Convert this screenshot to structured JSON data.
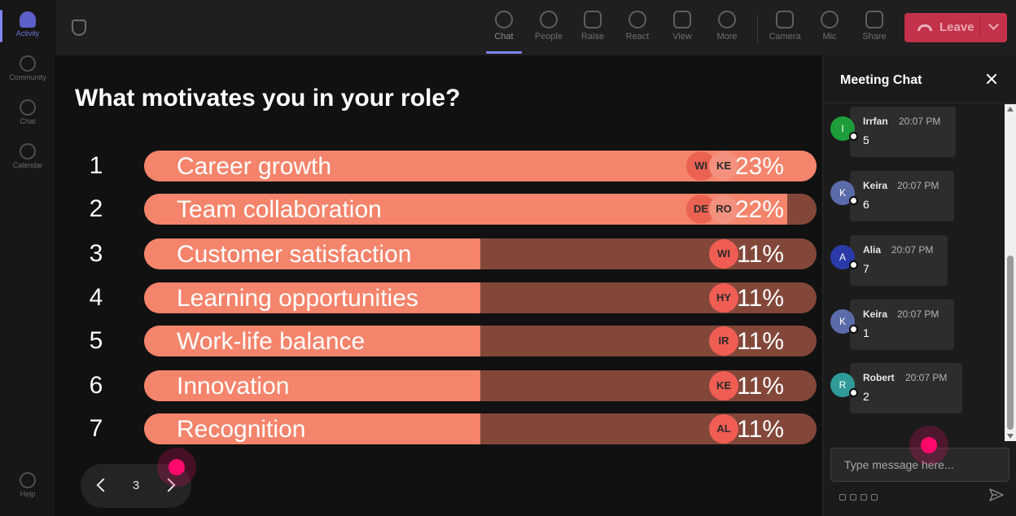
{
  "rail": {
    "items": [
      {
        "label": "Activity",
        "active": true,
        "icon": "bell-icon"
      },
      {
        "label": "Community",
        "active": false,
        "icon": "community-icon"
      },
      {
        "label": "Chat",
        "active": false,
        "icon": "chat-icon"
      },
      {
        "label": "Calendar",
        "active": false,
        "icon": "calendar-icon"
      }
    ],
    "help_label": "Help"
  },
  "toolbar": {
    "buttons": [
      {
        "label": "Chat",
        "icon": "chat-icon",
        "active": true
      },
      {
        "label": "People",
        "icon": "people-icon",
        "active": false
      },
      {
        "label": "Raise",
        "icon": "raise-hand-icon",
        "active": false
      },
      {
        "label": "React",
        "icon": "smiley-icon",
        "active": false
      },
      {
        "label": "View",
        "icon": "grid-icon",
        "active": false
      },
      {
        "label": "More",
        "icon": "more-icon",
        "active": false
      },
      {
        "label": "Camera",
        "icon": "camera-off-icon",
        "active": false
      },
      {
        "label": "Mic",
        "icon": "mic-icon",
        "active": false
      },
      {
        "label": "Share",
        "icon": "share-icon",
        "active": false
      }
    ],
    "leave_label": "Leave",
    "leave_color": "#c4314b"
  },
  "poll": {
    "question": "What motivates you in your role?",
    "options": [
      {
        "num": "1",
        "label": "Career growth",
        "percent_label": "23%",
        "fill": 1.0,
        "avatars": [
          "WI",
          "KE"
        ]
      },
      {
        "num": "2",
        "label": "Team collaboration",
        "percent_label": "22%",
        "fill": 0.957,
        "avatars": [
          "DE",
          "RO"
        ]
      },
      {
        "num": "3",
        "label": "Customer satisfaction",
        "percent_label": "11%",
        "fill": 0.5,
        "avatars": [
          "WI"
        ]
      },
      {
        "num": "4",
        "label": "Learning opportunities",
        "percent_label": "11%",
        "fill": 0.5,
        "avatars": [
          "HY"
        ]
      },
      {
        "num": "5",
        "label": "Work-life balance",
        "percent_label": "11%",
        "fill": 0.5,
        "avatars": [
          "IR"
        ]
      },
      {
        "num": "6",
        "label": "Innovation",
        "percent_label": "11%",
        "fill": 0.5,
        "avatars": [
          "KE"
        ]
      },
      {
        "num": "7",
        "label": "Recognition",
        "percent_label": "11%",
        "fill": 0.5,
        "avatars": [
          "AL"
        ]
      }
    ],
    "bar_color": "#f4846b",
    "track_color": "#83473a"
  },
  "pager": {
    "page": "3"
  },
  "chat": {
    "title": "Meeting Chat",
    "messages": [
      {
        "initial": "I",
        "name": "Irrfan",
        "time": "20:07 PM",
        "text": "5",
        "avatar_color": "#1e9e3a"
      },
      {
        "initial": "K",
        "name": "Keira",
        "time": "20:07 PM",
        "text": "6",
        "avatar_color": "#5b6aa8"
      },
      {
        "initial": "A",
        "name": "Alia",
        "time": "20:07 PM",
        "text": "7",
        "avatar_color": "#2a3aa8"
      },
      {
        "initial": "K",
        "name": "Keira",
        "time": "20:07 PM",
        "text": "1",
        "avatar_color": "#5b6aa8"
      },
      {
        "initial": "R",
        "name": "Robert",
        "time": "20:07 PM",
        "text": "2",
        "avatar_color": "#2f9a98"
      }
    ],
    "compose_placeholder": "Type message here..."
  }
}
